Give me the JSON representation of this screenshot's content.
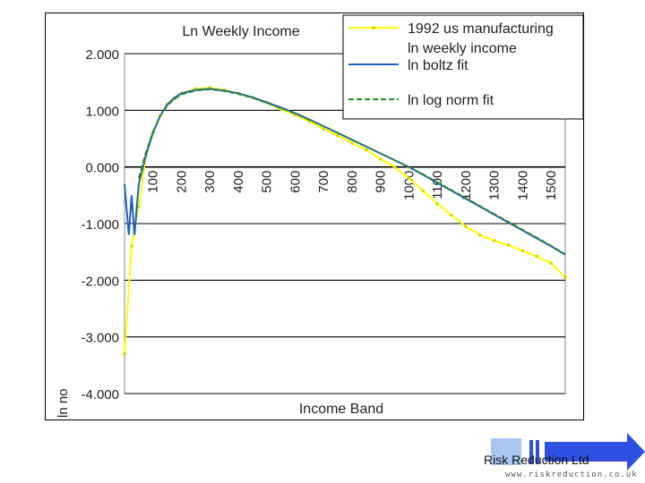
{
  "chart_data": {
    "type": "line",
    "title": "Ln Weekly Income",
    "xlabel": "Income Band",
    "ylabel": "ln no",
    "ylim": [
      -4,
      2
    ],
    "y_ticks": [
      "2.000",
      "1.000",
      "0.000",
      "-1.000",
      "-2.000",
      "-3.000",
      "-4.000"
    ],
    "x_tick_labels": [
      "100",
      "200",
      "300",
      "400",
      "500",
      "600",
      "700",
      "800",
      "900",
      "1000",
      "1100",
      "1200",
      "1300",
      "1400",
      "1500"
    ],
    "xlim": [
      0,
      1550
    ],
    "grid": "horizontal",
    "legend_position": "top-right",
    "series": [
      {
        "name": "1992 us manufacturing ln weekly income",
        "color": "#ffff00",
        "marker": "dot",
        "x": [
          0,
          25,
          50,
          75,
          100,
          125,
          150,
          175,
          200,
          250,
          300,
          350,
          400,
          450,
          500,
          550,
          600,
          650,
          700,
          750,
          800,
          850,
          900,
          950,
          1000,
          1050,
          1100,
          1150,
          1200,
          1250,
          1300,
          1350,
          1400,
          1450,
          1500,
          1550
        ],
        "y": [
          -3.3,
          -1.4,
          -0.7,
          0.2,
          0.6,
          0.9,
          1.1,
          1.2,
          1.3,
          1.38,
          1.4,
          1.36,
          1.3,
          1.23,
          1.14,
          1.02,
          0.92,
          0.8,
          0.67,
          0.55,
          0.42,
          0.3,
          0.14,
          0.0,
          -0.2,
          -0.42,
          -0.65,
          -0.85,
          -1.05,
          -1.2,
          -1.3,
          -1.38,
          -1.48,
          -1.58,
          -1.7,
          -1.95
        ]
      },
      {
        "name": "ln boltz fit",
        "color": "#1f5fbf",
        "x": [
          0,
          15,
          25,
          35,
          50,
          75,
          100,
          125,
          150,
          175,
          200,
          250,
          300,
          350,
          400,
          450,
          500,
          550,
          600,
          650,
          700,
          750,
          800,
          850,
          900,
          950,
          1000,
          1050,
          1100,
          1150,
          1200,
          1250,
          1300,
          1350,
          1400,
          1450,
          1500,
          1550
        ],
        "y": [
          -0.3,
          -1.2,
          -0.5,
          -1.2,
          -0.3,
          0.2,
          0.6,
          0.9,
          1.1,
          1.22,
          1.3,
          1.36,
          1.38,
          1.35,
          1.3,
          1.23,
          1.14,
          1.05,
          0.95,
          0.84,
          0.72,
          0.6,
          0.48,
          0.36,
          0.24,
          0.12,
          0.0,
          -0.14,
          -0.28,
          -0.42,
          -0.56,
          -0.7,
          -0.84,
          -0.98,
          -1.12,
          -1.26,
          -1.4,
          -1.55
        ]
      },
      {
        "name": "ln log norm fit",
        "color": "#2e8b2e",
        "dashed": true,
        "x": [
          50,
          75,
          100,
          125,
          150,
          175,
          200,
          250,
          300,
          350,
          400,
          450,
          500,
          550,
          600,
          650,
          700,
          750,
          800,
          850,
          900,
          950,
          1000,
          1050,
          1100,
          1150,
          1200,
          1250,
          1300,
          1350,
          1400,
          1450,
          1500,
          1550
        ],
        "y": [
          -0.2,
          0.25,
          0.62,
          0.9,
          1.08,
          1.2,
          1.28,
          1.35,
          1.37,
          1.34,
          1.29,
          1.22,
          1.13,
          1.04,
          0.94,
          0.83,
          0.72,
          0.6,
          0.48,
          0.36,
          0.24,
          0.12,
          0.0,
          -0.13,
          -0.27,
          -0.41,
          -0.55,
          -0.69,
          -0.83,
          -0.97,
          -1.11,
          -1.25,
          -1.39,
          -1.54
        ]
      }
    ]
  },
  "footer": {
    "company": "Risk Reduction Ltd",
    "url": "www.riskreduction.co.uk"
  }
}
